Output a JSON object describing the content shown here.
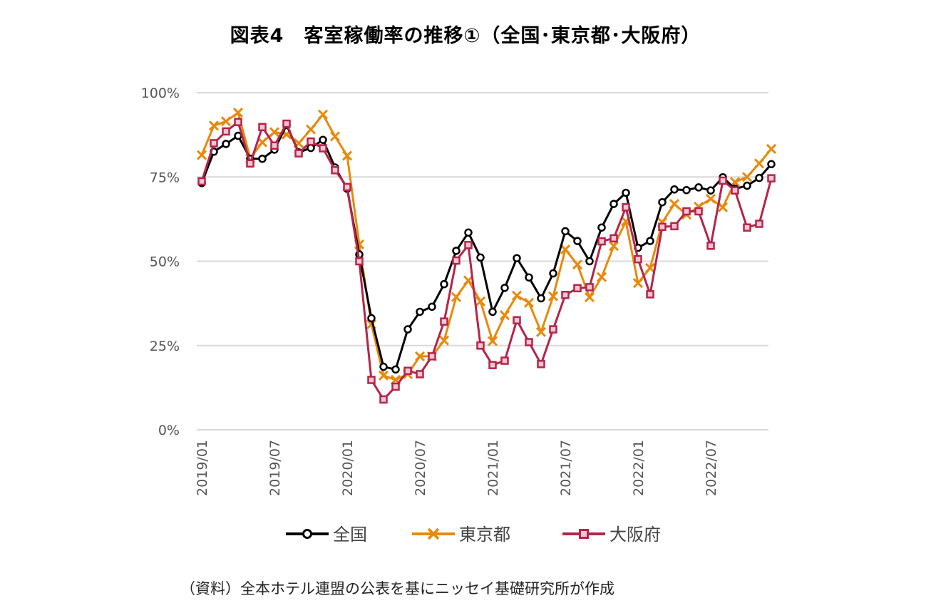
{
  "chart_data": {
    "type": "line",
    "title": "図表4　客室稼働率の推移①（全国･東京都･大阪府）",
    "source": "（資料）全本ホテル連盟の公表を基にニッセイ基礎研究所が作成",
    "ylim": [
      0,
      100
    ],
    "yticks": [
      0,
      25,
      50,
      75,
      100
    ],
    "ytick_labels": [
      "0%",
      "25%",
      "50%",
      "75%",
      "100%"
    ],
    "xticks": [
      {
        "i": 0,
        "label": "2019/01"
      },
      {
        "i": 6,
        "label": "2019/07"
      },
      {
        "i": 12,
        "label": "2020/01"
      },
      {
        "i": 18,
        "label": "2020/07"
      },
      {
        "i": 24,
        "label": "2021/01"
      },
      {
        "i": 30,
        "label": "2021/07"
      },
      {
        "i": 36,
        "label": "2022/01"
      },
      {
        "i": 42,
        "label": "2022/07"
      }
    ],
    "grid": true,
    "legend_position": "bottom",
    "x": [
      "2019/01",
      "2019/02",
      "2019/03",
      "2019/04",
      "2019/05",
      "2019/06",
      "2019/07",
      "2019/08",
      "2019/09",
      "2019/10",
      "2019/11",
      "2019/12",
      "2020/01",
      "2020/02",
      "2020/03",
      "2020/04",
      "2020/05",
      "2020/06",
      "2020/07",
      "2020/08",
      "2020/09",
      "2020/10",
      "2020/11",
      "2020/12",
      "2021/01",
      "2021/02",
      "2021/03",
      "2021/04",
      "2021/05",
      "2021/06",
      "2021/07",
      "2021/08",
      "2021/09",
      "2021/10",
      "2021/11",
      "2021/12",
      "2022/01",
      "2022/02",
      "2022/03",
      "2022/04",
      "2022/05",
      "2022/06",
      "2022/07",
      "2022/08",
      "2022/09",
      "2022/10",
      "2022/11",
      "2022/12"
    ],
    "series": [
      {
        "name": "全国",
        "color": "#000000",
        "marker": "circle",
        "values": [
          73.2,
          82.5,
          84.8,
          87.2,
          80.4,
          80.4,
          83.1,
          90.4,
          82.3,
          83.6,
          86.0,
          77.8,
          71.5,
          52.0,
          33.1,
          18.7,
          17.9,
          29.8,
          35.0,
          36.5,
          43.2,
          53.1,
          58.5,
          51.1,
          35.0,
          42.1,
          50.9,
          45.2,
          39.0,
          46.4,
          58.9,
          56.0,
          50.0,
          60.0,
          67.0,
          70.3,
          54.0,
          56.0,
          67.5,
          71.3,
          71.1,
          71.9,
          71.0,
          74.9,
          71.5,
          72.4,
          74.7,
          78.8
        ]
      },
      {
        "name": "東京都",
        "color": "#E8890C",
        "marker": "x",
        "values": [
          81.5,
          90.2,
          91.5,
          94.1,
          80.5,
          85.3,
          88.3,
          87.6,
          85.0,
          89.1,
          93.5,
          87.0,
          81.3,
          55.0,
          31.3,
          16.1,
          14.8,
          16.5,
          21.8,
          21.8,
          26.5,
          39.4,
          44.3,
          38.1,
          26.3,
          34.0,
          39.8,
          37.7,
          29.0,
          39.6,
          53.5,
          49.0,
          39.3,
          45.3,
          54.5,
          61.8,
          43.5,
          48.0,
          61.5,
          67.0,
          63.8,
          66.2,
          68.5,
          66.0,
          73.5,
          75.0,
          79.0,
          83.3
        ]
      },
      {
        "name": "大阪府",
        "color": "#B5244A",
        "marker": "square",
        "values": [
          73.7,
          85.0,
          88.5,
          91.3,
          79.0,
          89.8,
          84.3,
          90.8,
          82.0,
          85.5,
          83.5,
          77.0,
          72.0,
          50.0,
          14.8,
          9.0,
          12.8,
          17.5,
          16.5,
          21.8,
          32.1,
          50.2,
          54.8,
          25.0,
          19.2,
          20.5,
          32.5,
          26.0,
          19.5,
          29.8,
          40.0,
          42.0,
          42.3,
          55.9,
          56.8,
          66.0,
          50.6,
          40.2,
          60.2,
          60.4,
          64.8,
          64.8,
          54.6,
          73.9,
          71.0,
          60.0,
          61.1,
          74.6
        ]
      }
    ]
  }
}
